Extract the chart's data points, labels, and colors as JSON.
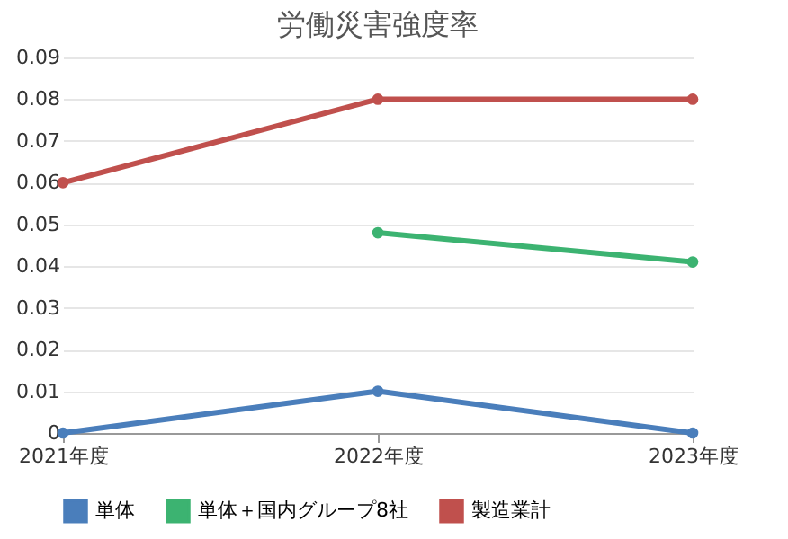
{
  "chart_data": {
    "type": "line",
    "title": "労働災害強度率",
    "categories": [
      "2021年度",
      "2022年度",
      "2023年度"
    ],
    "series": [
      {
        "name": "単体",
        "color": "#4a7ebb",
        "values": [
          0,
          0.01,
          0
        ]
      },
      {
        "name": "単体＋国内グループ8社",
        "color": "#3cb371",
        "values": [
          null,
          0.048,
          0.041
        ]
      },
      {
        "name": "製造業計",
        "color": "#c0504d",
        "values": [
          0.06,
          0.08,
          0.08
        ]
      }
    ],
    "ylim": [
      0,
      0.09
    ],
    "yticks": [
      0,
      0.01,
      0.02,
      0.03,
      0.04,
      0.05,
      0.06,
      0.07,
      0.08,
      0.09
    ],
    "grid": "y",
    "legend": "bottom",
    "marker": "circle",
    "line_style": "solid"
  }
}
